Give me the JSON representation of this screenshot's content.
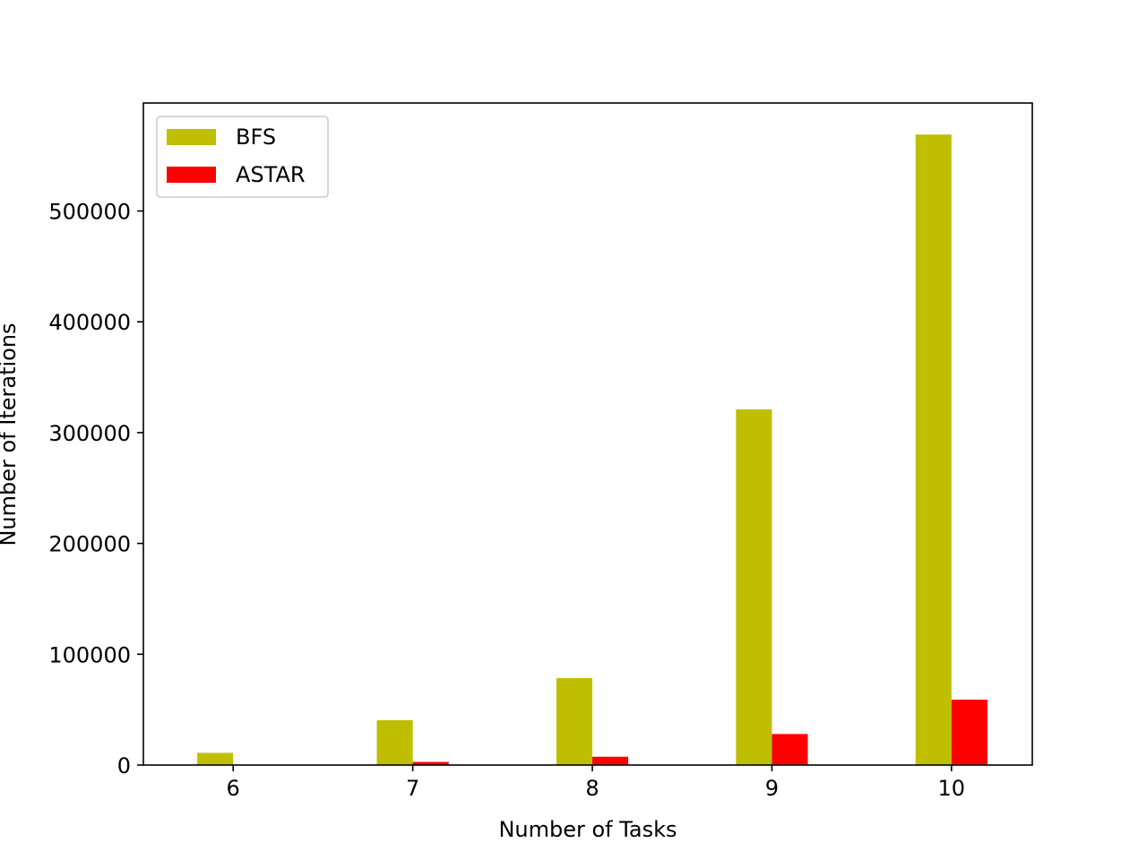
{
  "chart_data": {
    "type": "bar",
    "categories": [
      "6",
      "7",
      "8",
      "9",
      "10"
    ],
    "series": [
      {
        "name": "BFS",
        "color": "#bfbf00",
        "values": [
          11000,
          40500,
          78500,
          321000,
          569000
        ]
      },
      {
        "name": "ASTAR",
        "color": "#ff0000",
        "values": [
          300,
          2800,
          7500,
          28000,
          59000
        ]
      }
    ],
    "xlabel": "Number of Tasks",
    "ylabel": "Number of Iterations",
    "ylim": [
      0,
      597450
    ],
    "yticks": [
      0,
      100000,
      200000,
      300000,
      400000,
      500000
    ],
    "ytick_labels": [
      "0",
      "100000",
      "200000",
      "300000",
      "400000",
      "500000"
    ],
    "xlim": [
      5.5,
      10.45
    ],
    "grid": false,
    "legend_position": "top-left"
  }
}
